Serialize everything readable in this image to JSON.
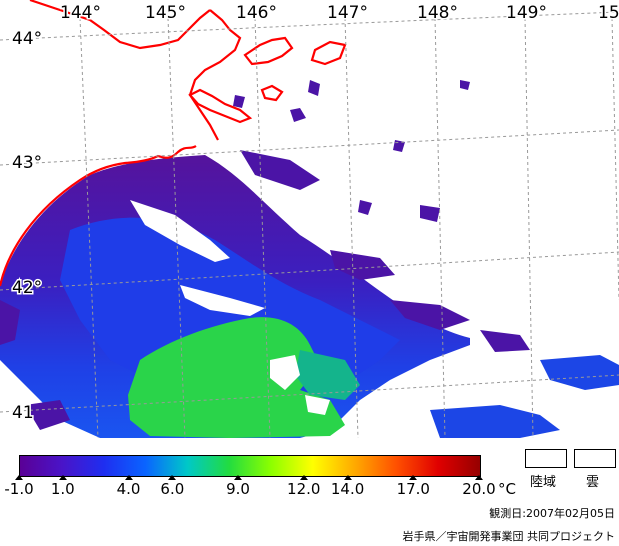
{
  "map": {
    "longitude_labels": [
      "144°",
      "145°",
      "146°",
      "147°",
      "148°",
      "149°",
      "15"
    ],
    "latitude_labels": [
      "44°",
      "43°",
      "42°",
      "41"
    ]
  },
  "colorbar": {
    "min": -1.0,
    "max": 20.0,
    "tick_labels": [
      "-1.0",
      "1.0",
      "4.0",
      "6.0",
      "9.0",
      "12.0",
      "14.0",
      "17.0",
      "20.0"
    ],
    "tick_values": [
      -1.0,
      1.0,
      4.0,
      6.0,
      9.0,
      12.0,
      14.0,
      17.0,
      20.0
    ],
    "unit": "°C",
    "stops": [
      "#5a0096",
      "#4a14c8",
      "#1f2ef0",
      "#0a64ff",
      "#00c8c8",
      "#22dc40",
      "#8cff00",
      "#ffff00",
      "#ffaa00",
      "#ff5000",
      "#e00000",
      "#960000"
    ]
  },
  "legend": {
    "land_label": "陸域",
    "cloud_label": "雲"
  },
  "observation": "観測日:2007年02月05日",
  "credit": "岩手県／宇宙開発事業団  共同プロジェクト",
  "colors": {
    "coastline": "#ff0000",
    "grid": "#999999",
    "sea_cold": "#4b14a6",
    "sea_mid": "#1e3ce6",
    "sea_warm": "#28d23c"
  }
}
